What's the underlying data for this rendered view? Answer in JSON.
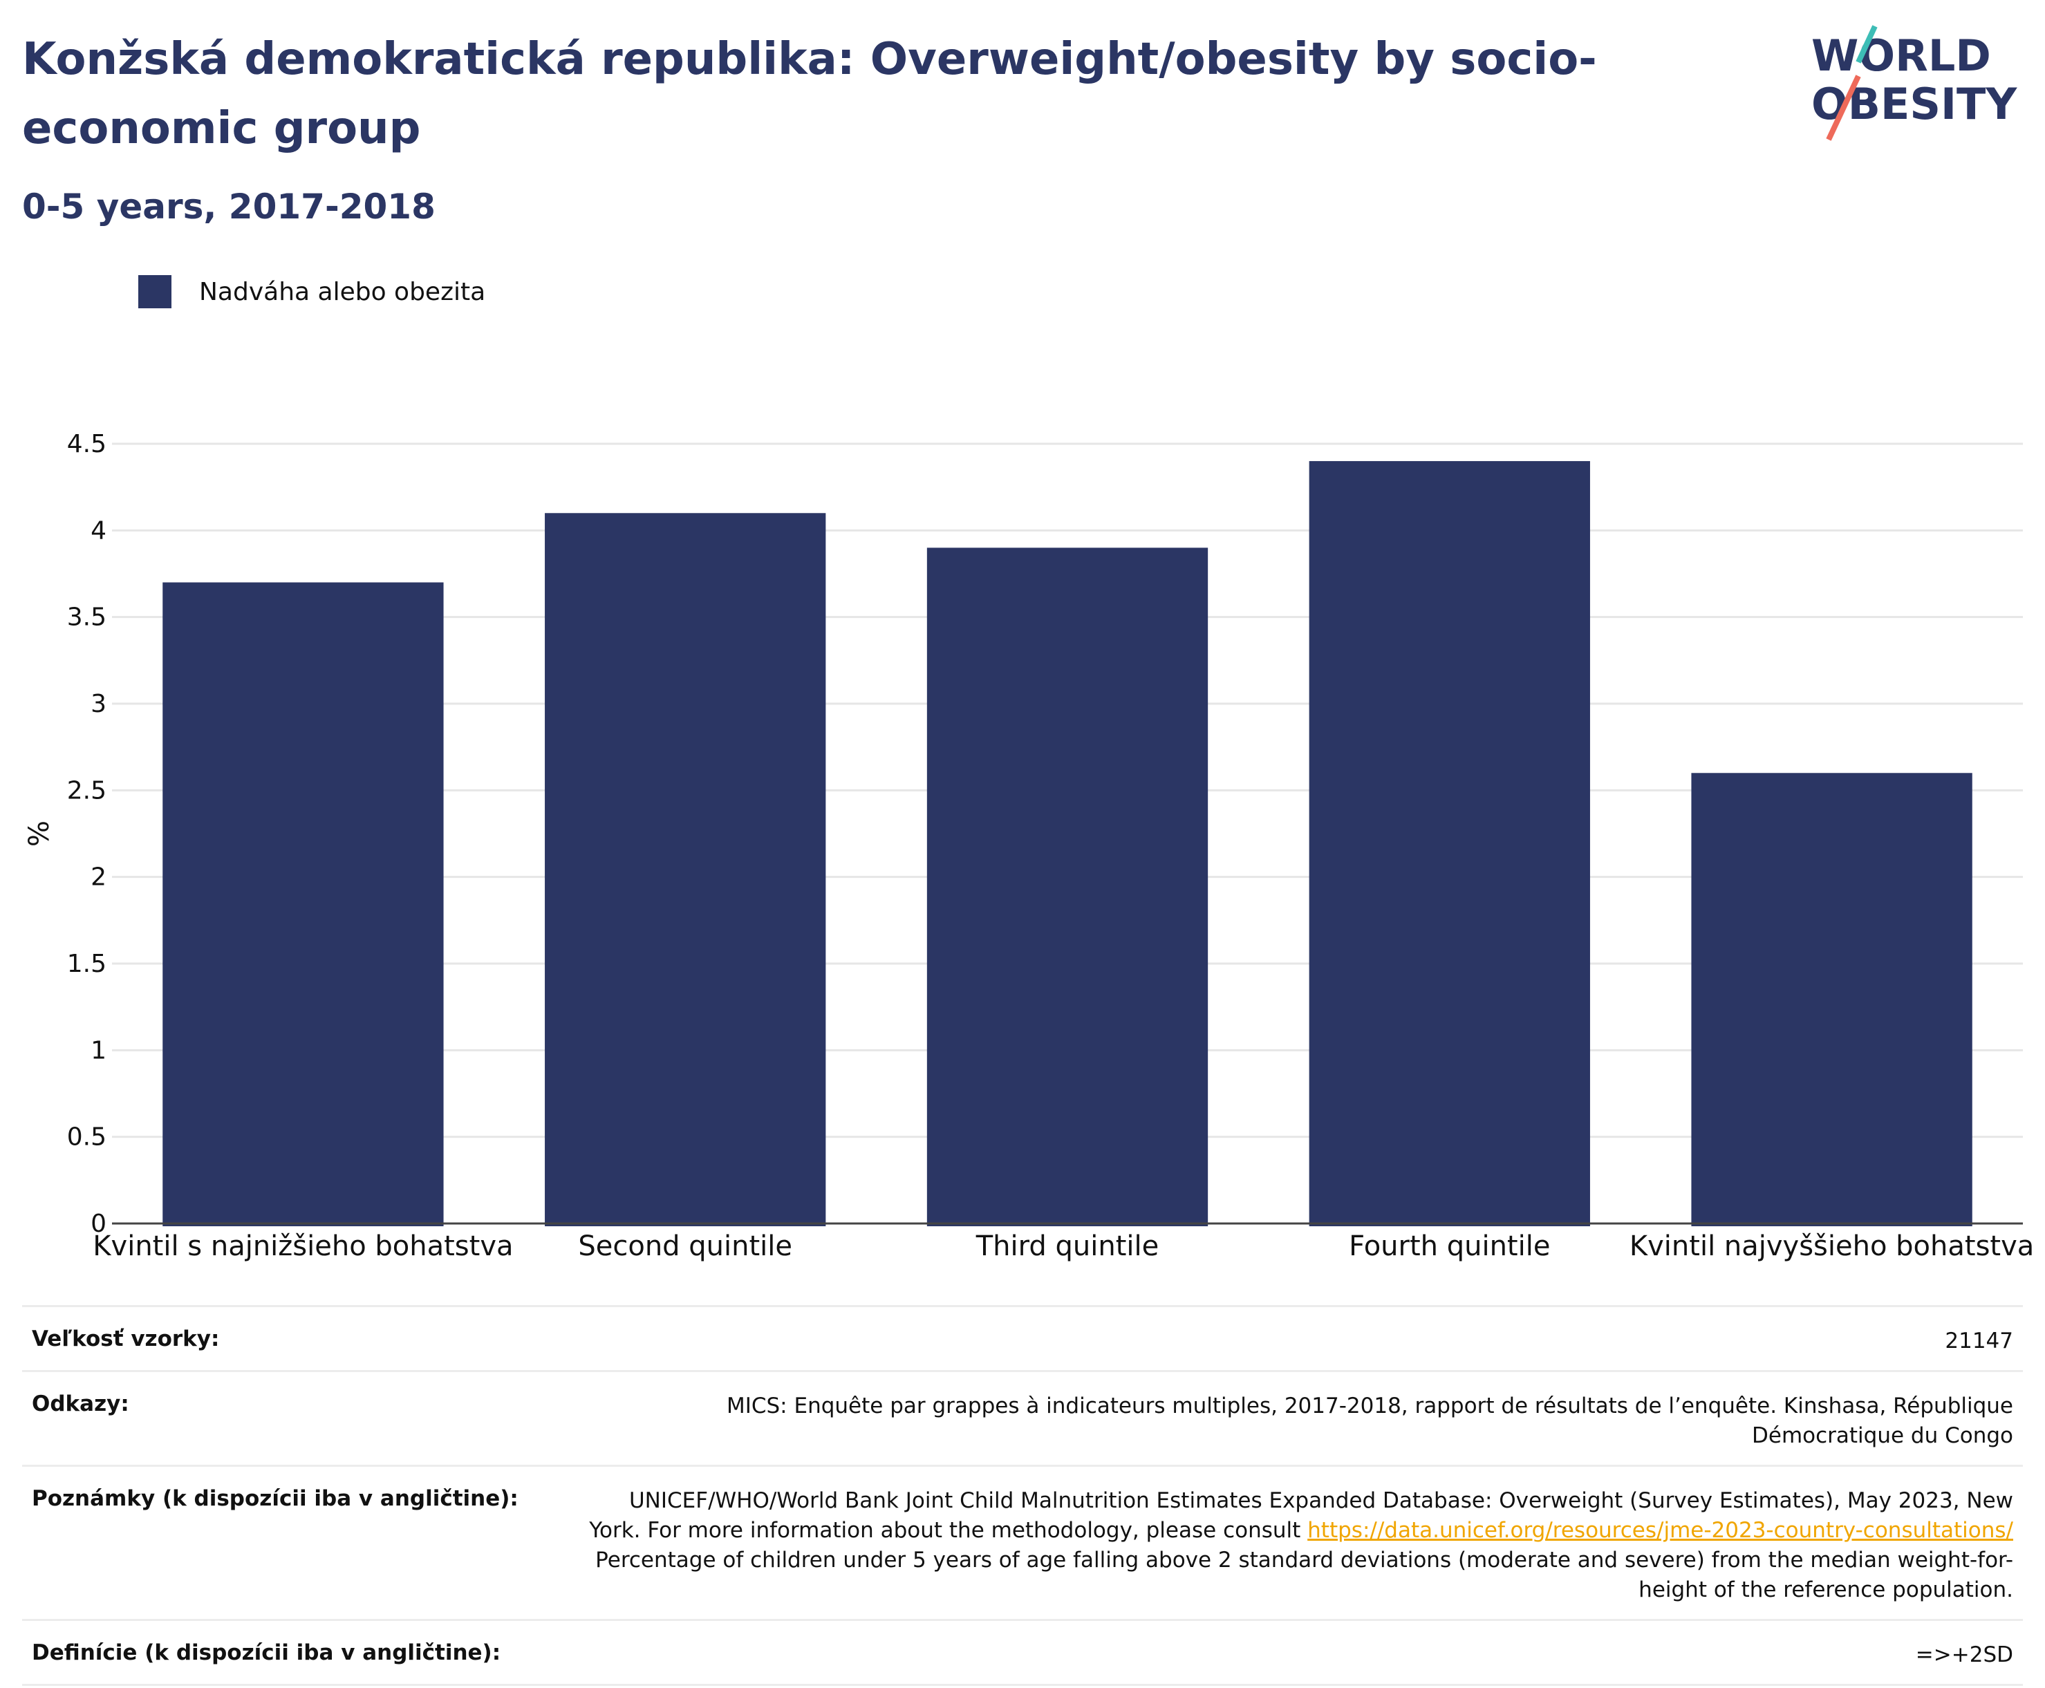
{
  "header": {
    "title": "Konžská demokratická republika: Overweight/obesity by socio-economic group",
    "subtitle": "0-5 years, 2017-2018",
    "logo_line1": "WORLD",
    "logo_line2": "OBESITY"
  },
  "colors": {
    "bar": "#2b3664",
    "text_dark": "#2b3664",
    "link": "#f0a500",
    "logo_teal": "#3dbdb6",
    "logo_coral": "#ee6a5a"
  },
  "legend": {
    "label": "Nadváha alebo obezita"
  },
  "chart_data": {
    "type": "bar",
    "title": "Konžská demokratická republika: Overweight/obesity by socio-economic group",
    "subtitle": "0-5 years, 2017-2018",
    "xlabel": "",
    "ylabel": "%",
    "ylim": [
      0,
      4.5
    ],
    "yticks": [
      "0",
      "0.5",
      "1",
      "1.5",
      "2",
      "2.5",
      "3",
      "3.5",
      "4",
      "4.5"
    ],
    "grid": true,
    "legend_position": "top-left",
    "categories": [
      "Kvintil s najnižšieho bohatstva",
      "Second quintile",
      "Third quintile",
      "Fourth quintile",
      "Kvintil najvyššieho bohatstva"
    ],
    "series": [
      {
        "name": "Nadváha alebo obezita",
        "values": [
          3.7,
          4.1,
          3.9,
          4.4,
          2.6
        ]
      }
    ]
  },
  "meta": [
    {
      "key": "Veľkosť vzorky:",
      "value": "21147"
    },
    {
      "key": "Odkazy:",
      "value": "MICS: Enquête par grappes à indicateurs multiples, 2017-2018, rapport de résultats de l’enquête. Kinshasa, République Démocratique du Congo"
    },
    {
      "key": "Poznámky (k dispozícii iba v angličtine):",
      "value_before": "UNICEF/WHO/World Bank Joint Child Malnutrition Estimates Expanded Database: Overweight (Survey Estimates), May 2023, New York. For more information about the methodology, please consult ",
      "link": "https://data.unicef.org/resources/jme-2023-country-consultations/",
      "value_after": " Percentage of children under 5 years of age falling above 2 standard deviations (moderate and severe) from the median weight-for-height of the reference population."
    },
    {
      "key": "Definície (k dispozícii iba v angličtine):",
      "value": "=>+2SD"
    }
  ]
}
